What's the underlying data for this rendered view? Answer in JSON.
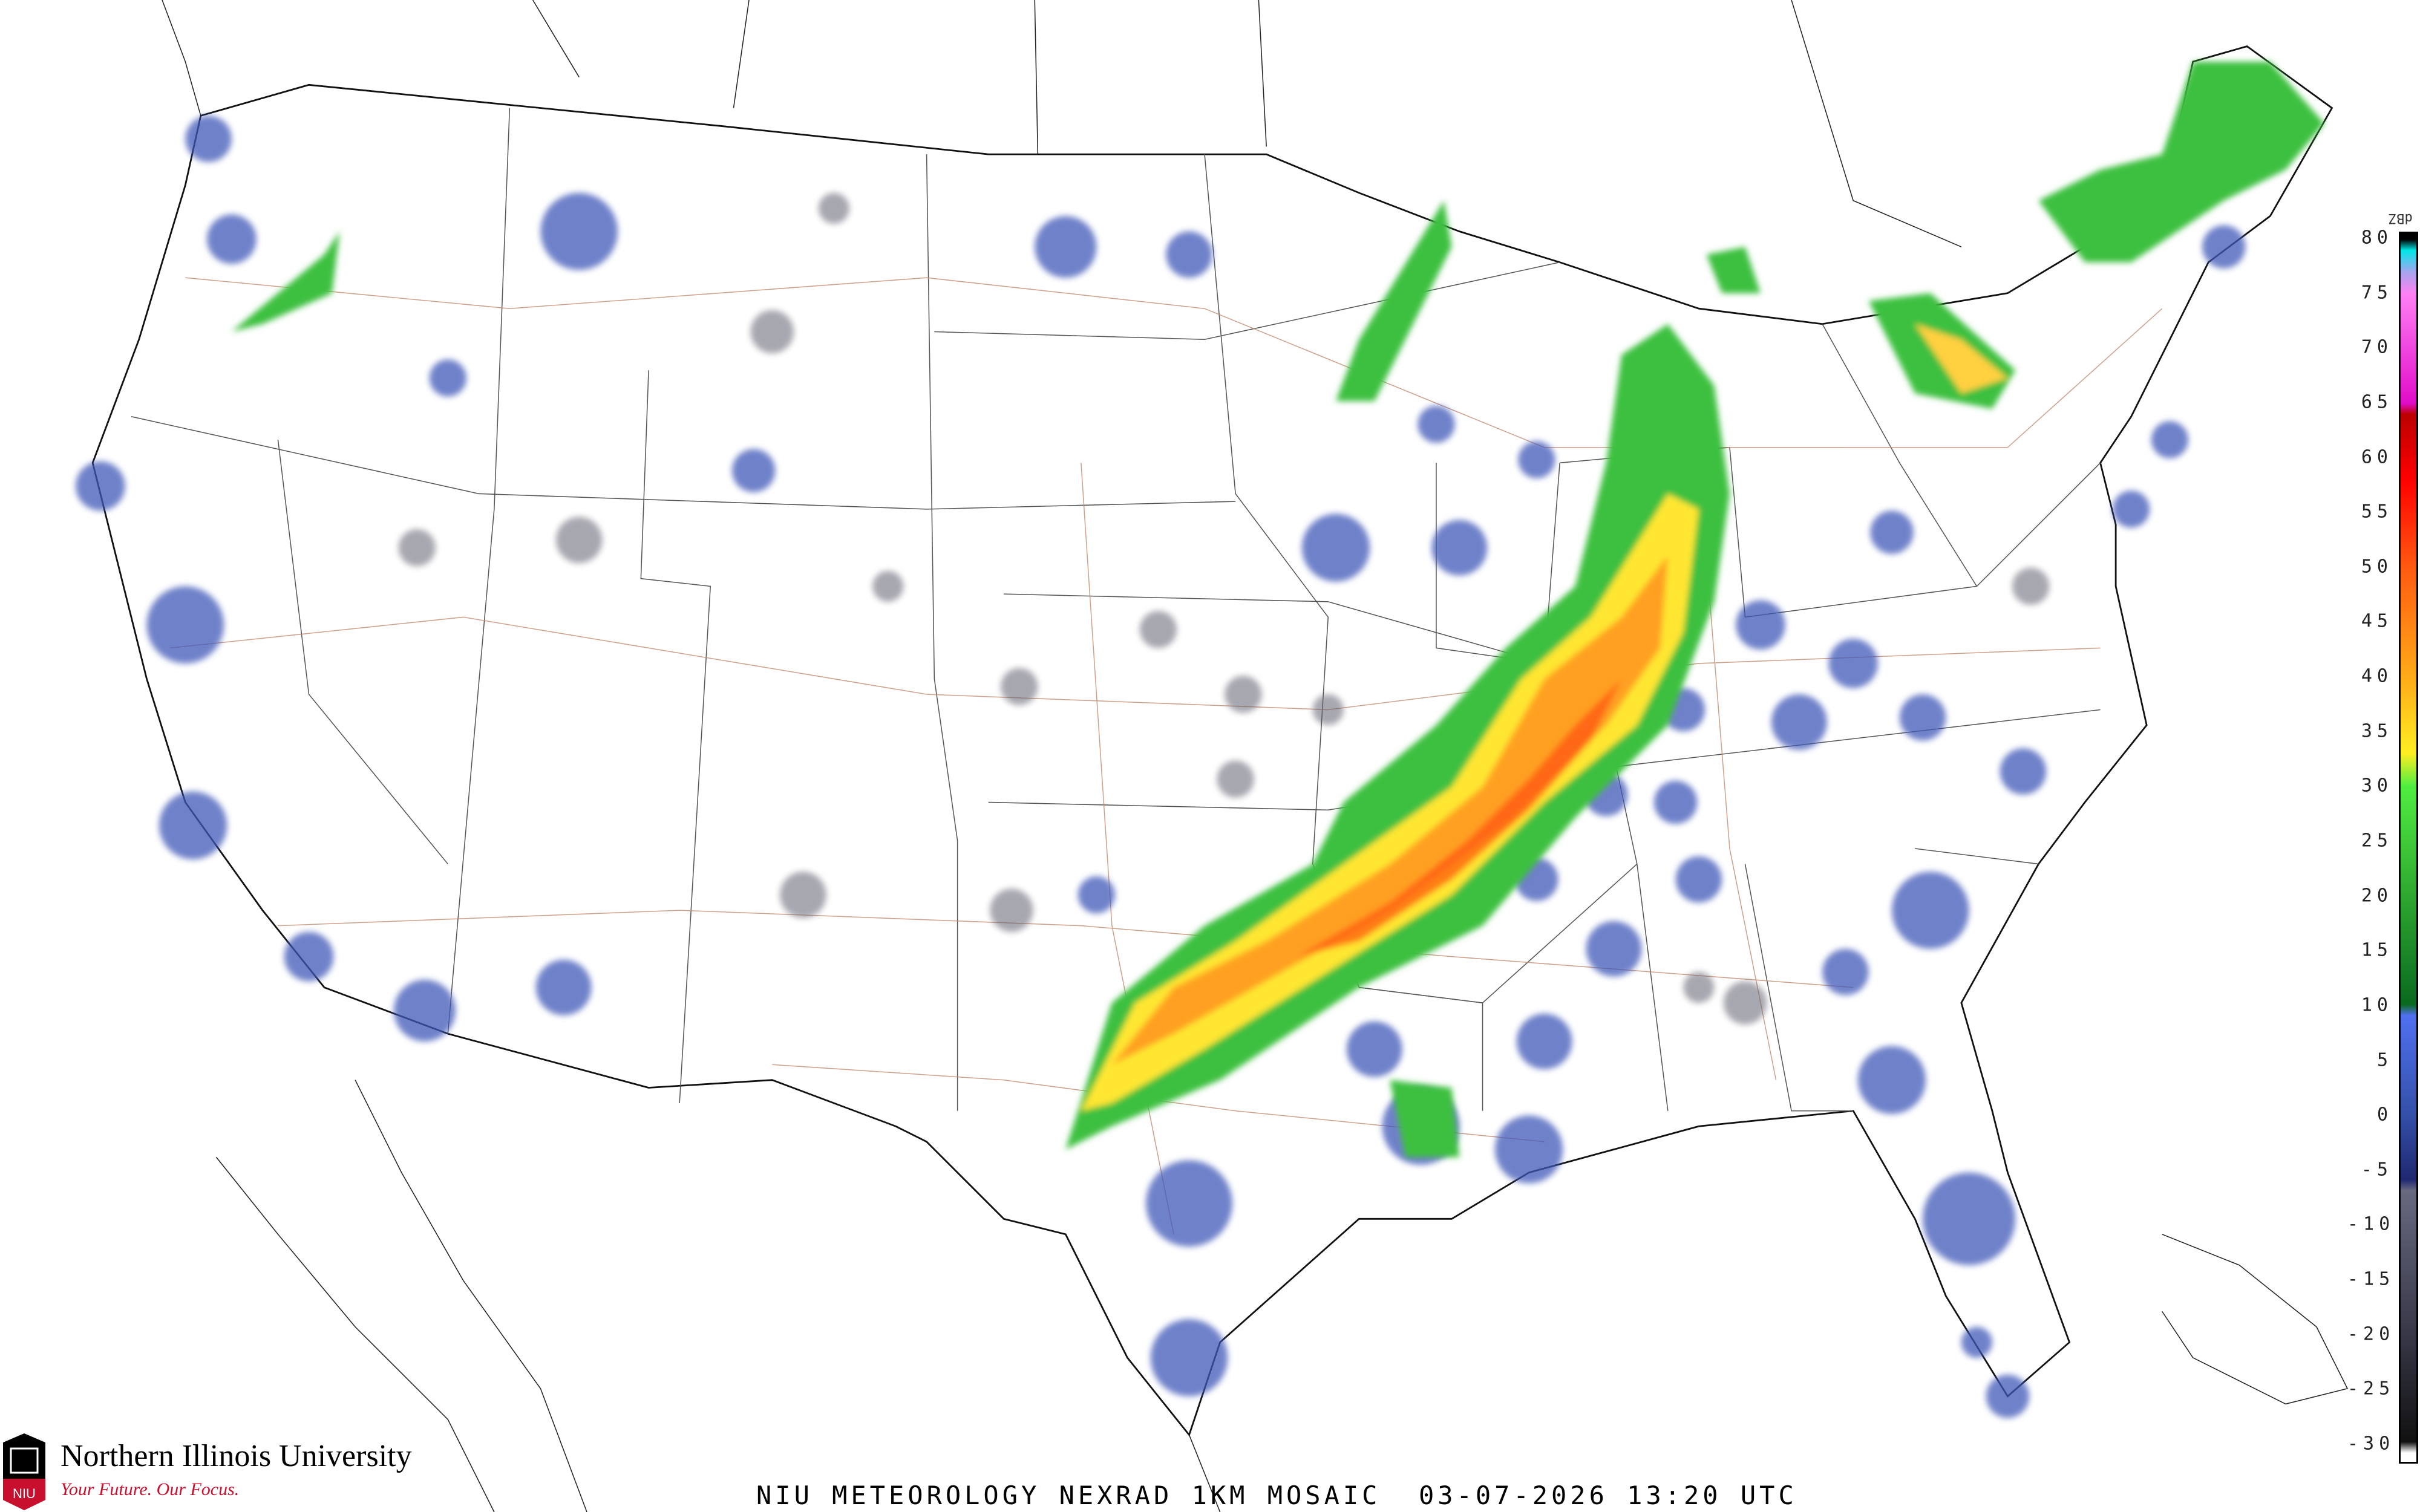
{
  "title": "NIU METEOROLOGY NEXRAD 1KM MOSAIC  03-07-2026 13:20 UTC",
  "logo": {
    "name": "Northern Illinois University",
    "tagline": "Your Future. Our Focus.",
    "mark": "NIU"
  },
  "legend": {
    "units": "dBZ",
    "range": [
      -30,
      80
    ],
    "ticks": [
      "80",
      "75",
      "70",
      "65",
      "60",
      "55",
      "50",
      "45",
      "40",
      "35",
      "30",
      "25",
      "20",
      "15",
      "10",
      "5",
      "0",
      "-5",
      "-10",
      "-15",
      "-20",
      "-25",
      "-30"
    ],
    "color_stops": [
      {
        "dbz": 80,
        "color": "#000000"
      },
      {
        "dbz": 79,
        "color": "#00e8e8"
      },
      {
        "dbz": 77,
        "color": "#a8a4ee"
      },
      {
        "dbz": 75,
        "color": "#ff80f4"
      },
      {
        "dbz": 65,
        "color": "#e00cc8"
      },
      {
        "dbz": 64,
        "color": "#bb0000"
      },
      {
        "dbz": 58,
        "color": "#ff0000"
      },
      {
        "dbz": 50,
        "color": "#ff5a10"
      },
      {
        "dbz": 40,
        "color": "#ffaa18"
      },
      {
        "dbz": 33,
        "color": "#ffee22"
      },
      {
        "dbz": 30,
        "color": "#50ee40"
      },
      {
        "dbz": 20,
        "color": "#2ea830"
      },
      {
        "dbz": 10,
        "color": "#0a6a20"
      },
      {
        "dbz": 9,
        "color": "#5070f0"
      },
      {
        "dbz": 0,
        "color": "#3450a8"
      },
      {
        "dbz": -6,
        "color": "#202870"
      },
      {
        "dbz": -7,
        "color": "#686880"
      },
      {
        "dbz": -20,
        "color": "#383848"
      },
      {
        "dbz": -30,
        "color": "#111111"
      },
      {
        "dbz": -31,
        "color": "#ffffff"
      }
    ]
  }
}
